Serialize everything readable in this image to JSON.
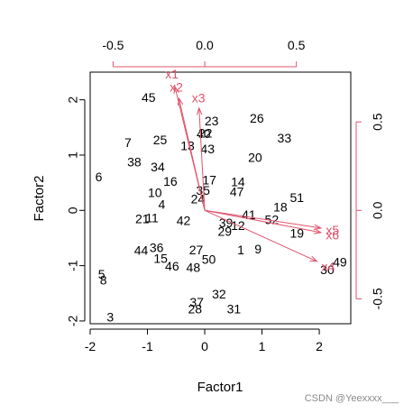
{
  "chart_data": {
    "type": "scatter",
    "xlabel": "Factor1",
    "ylabel": "Factor2",
    "xlim": [
      -2.0,
      2.55
    ],
    "ylim": [
      -2.05,
      2.5
    ],
    "x_ticks": [
      -2,
      -1,
      0,
      1,
      2
    ],
    "y_ticks": [
      -2,
      -1,
      0,
      1,
      2
    ],
    "top_axis_ticks": [
      "-0.5",
      "0.0",
      "0.5"
    ],
    "right_axis_ticks": [
      "-0.5",
      "0.0",
      "0.5"
    ],
    "top_axis_values": [
      -0.5,
      0.0,
      0.5
    ],
    "right_axis_values": [
      -0.5,
      0.0,
      0.5
    ],
    "loading_scale": 3.2,
    "colors": {
      "observations": "#000000",
      "loadings": "#df536b"
    },
    "observations": [
      {
        "label": "1",
        "x": 0.63,
        "y": -0.71
      },
      {
        "label": "3",
        "x": -1.65,
        "y": -1.93
      },
      {
        "label": "4",
        "x": -0.75,
        "y": 0.11
      },
      {
        "label": "5",
        "x": -1.8,
        "y": -1.15
      },
      {
        "label": "6",
        "x": -1.85,
        "y": 0.61
      },
      {
        "label": "7",
        "x": -1.34,
        "y": 1.23
      },
      {
        "label": "8",
        "x": -1.77,
        "y": -1.26
      },
      {
        "label": "9",
        "x": 0.93,
        "y": -0.7
      },
      {
        "label": "10",
        "x": -0.87,
        "y": 0.32
      },
      {
        "label": "11",
        "x": -0.92,
        "y": -0.13
      },
      {
        "label": "12",
        "x": 0.58,
        "y": -0.27
      },
      {
        "label": "13",
        "x": -0.3,
        "y": 1.17
      },
      {
        "label": "14",
        "x": 0.58,
        "y": 0.52
      },
      {
        "label": "15",
        "x": -0.77,
        "y": -0.87
      },
      {
        "label": "16",
        "x": -0.6,
        "y": 0.53
      },
      {
        "label": "17",
        "x": 0.08,
        "y": 0.55
      },
      {
        "label": "18",
        "x": 1.32,
        "y": 0.06
      },
      {
        "label": "19",
        "x": 1.61,
        "y": -0.41
      },
      {
        "label": "20",
        "x": 0.88,
        "y": 0.96
      },
      {
        "label": "21",
        "x": -1.09,
        "y": -0.15
      },
      {
        "label": "22",
        "x": 0.01,
        "y": 1.4
      },
      {
        "label": "23",
        "x": 0.12,
        "y": 1.62
      },
      {
        "label": "24",
        "x": -0.12,
        "y": 0.21
      },
      {
        "label": "25",
        "x": -0.78,
        "y": 1.28
      },
      {
        "label": "26",
        "x": 0.91,
        "y": 1.67
      },
      {
        "label": "27",
        "x": -0.15,
        "y": -0.71
      },
      {
        "label": "28",
        "x": -0.17,
        "y": -1.78
      },
      {
        "label": "29",
        "x": 0.35,
        "y": -0.38
      },
      {
        "label": "30",
        "x": 2.14,
        "y": -1.07
      },
      {
        "label": "31",
        "x": 0.51,
        "y": -1.78
      },
      {
        "label": "32",
        "x": 0.25,
        "y": -1.51
      },
      {
        "label": "33",
        "x": 1.39,
        "y": 1.31
      },
      {
        "label": "34",
        "x": -0.82,
        "y": 0.79
      },
      {
        "label": "35",
        "x": -0.03,
        "y": 0.36
      },
      {
        "label": "36",
        "x": -0.84,
        "y": -0.67
      },
      {
        "label": "37",
        "x": -0.14,
        "y": -1.66
      },
      {
        "label": "38",
        "x": -1.23,
        "y": 0.88
      },
      {
        "label": "39",
        "x": 0.37,
        "y": -0.22
      },
      {
        "label": "40",
        "x": -0.02,
        "y": 1.39
      },
      {
        "label": "41",
        "x": 0.77,
        "y": -0.08
      },
      {
        "label": "42",
        "x": -0.37,
        "y": -0.18
      },
      {
        "label": "43",
        "x": 0.05,
        "y": 1.11
      },
      {
        "label": "44",
        "x": -1.11,
        "y": -0.72
      },
      {
        "label": "45",
        "x": -0.98,
        "y": 2.04
      },
      {
        "label": "46",
        "x": -0.57,
        "y": -1.01
      },
      {
        "label": "47",
        "x": 0.56,
        "y": 0.34
      },
      {
        "label": "48",
        "x": -0.2,
        "y": -1.03
      },
      {
        "label": "49",
        "x": 2.36,
        "y": -0.93
      },
      {
        "label": "50",
        "x": 0.07,
        "y": -0.88
      },
      {
        "label": "51",
        "x": 1.61,
        "y": 0.23
      },
      {
        "label": "52",
        "x": 1.17,
        "y": -0.17
      }
    ],
    "loadings": [
      {
        "name": "x1",
        "x": -0.163,
        "y": 0.7
      },
      {
        "name": "x2",
        "x": -0.141,
        "y": 0.633
      },
      {
        "name": "x3",
        "x": -0.031,
        "y": 0.578
      },
      {
        "name": "x4",
        "x": 0.612,
        "y": -0.288
      },
      {
        "name": "x5",
        "x": 0.634,
        "y": -0.1
      },
      {
        "name": "x6",
        "x": 0.634,
        "y": -0.125
      }
    ]
  },
  "watermark": "CSDN @Yeexxxx___"
}
